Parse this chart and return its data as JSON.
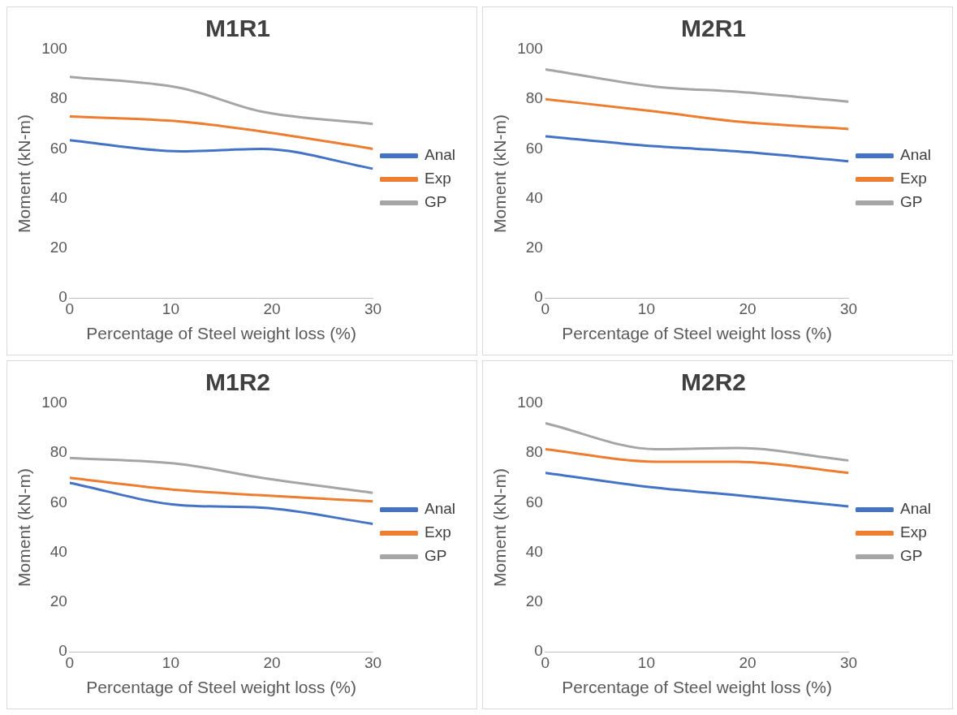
{
  "chart_data": [
    {
      "type": "line",
      "title": "M1R1",
      "xlabel": "Percentage of Steel weight loss (%)",
      "ylabel": "Moment (kN-m)",
      "x": [
        0,
        11,
        19,
        30
      ],
      "xlim": [
        0,
        30
      ],
      "xticks": [
        0,
        10,
        20,
        30
      ],
      "ylim": [
        0,
        100
      ],
      "yticks": [
        0,
        20,
        40,
        60,
        80,
        100
      ],
      "legend": "right",
      "series": [
        {
          "name": "Anal",
          "color": "#4472c4",
          "values": [
            63.5,
            59,
            60,
            52
          ]
        },
        {
          "name": "Exp",
          "color": "#ed7d31",
          "values": [
            73,
            71,
            67,
            60
          ]
        },
        {
          "name": "GP",
          "color": "#a5a5a5",
          "values": [
            89,
            84.5,
            75,
            70
          ]
        }
      ]
    },
    {
      "type": "line",
      "title": "M2R1",
      "xlabel": "Percentage of Steel weight loss (%)",
      "ylabel": "Moment (kN-m)",
      "x": [
        0,
        11,
        19,
        30
      ],
      "xlim": [
        0,
        30
      ],
      "xticks": [
        0,
        10,
        20,
        30
      ],
      "ylim": [
        0,
        100
      ],
      "yticks": [
        0,
        20,
        40,
        60,
        80,
        100
      ],
      "legend": "right",
      "series": [
        {
          "name": "Anal",
          "color": "#4472c4",
          "values": [
            65,
            61,
            59,
            55
          ]
        },
        {
          "name": "Exp",
          "color": "#ed7d31",
          "values": [
            80,
            75,
            71,
            68
          ]
        },
        {
          "name": "GP",
          "color": "#a5a5a5",
          "values": [
            92,
            85,
            83,
            79
          ]
        }
      ]
    },
    {
      "type": "line",
      "title": "M1R2",
      "xlabel": "Percentage of Steel weight loss (%)",
      "ylabel": "Moment (kN-m)",
      "x": [
        0,
        11,
        19,
        30
      ],
      "xlim": [
        0,
        30
      ],
      "xticks": [
        0,
        10,
        20,
        30
      ],
      "ylim": [
        0,
        100
      ],
      "yticks": [
        0,
        20,
        40,
        60,
        80,
        100
      ],
      "legend": "right",
      "series": [
        {
          "name": "Anal",
          "color": "#4472c4",
          "values": [
            68,
            59,
            58,
            51.5
          ]
        },
        {
          "name": "Exp",
          "color": "#ed7d31",
          "values": [
            70,
            65,
            63,
            60.5
          ]
        },
        {
          "name": "GP",
          "color": "#a5a5a5",
          "values": [
            78,
            75.5,
            70,
            64
          ]
        }
      ]
    },
    {
      "type": "line",
      "title": "M2R2",
      "xlabel": "Percentage of Steel weight loss (%)",
      "ylabel": "Moment (kN-m)",
      "x": [
        0,
        11,
        19,
        30
      ],
      "xlim": [
        0,
        30
      ],
      "xticks": [
        0,
        10,
        20,
        30
      ],
      "ylim": [
        0,
        100
      ],
      "yticks": [
        0,
        20,
        40,
        60,
        80,
        100
      ],
      "legend": "right",
      "series": [
        {
          "name": "Anal",
          "color": "#4472c4",
          "values": [
            72,
            66,
            63,
            58.5
          ]
        },
        {
          "name": "Exp",
          "color": "#ed7d31",
          "values": [
            81.5,
            76.5,
            76.5,
            72
          ]
        },
        {
          "name": "GP",
          "color": "#a5a5a5",
          "values": [
            92,
            81.5,
            82,
            77
          ]
        }
      ]
    }
  ]
}
